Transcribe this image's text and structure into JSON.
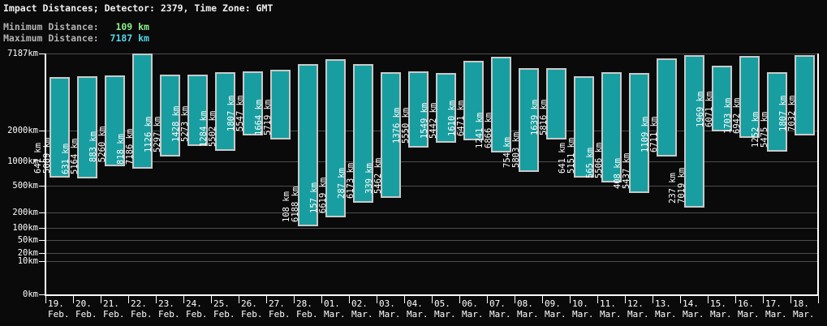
{
  "header": {
    "title": "Impact Distances; Detector: 2379, Time Zone: GMT",
    "min_label": "Minimum Distance:",
    "min_value": "109 km",
    "max_label": "Maximum Distance:",
    "max_value": "7187 km"
  },
  "colors": {
    "background": "#0a0a0a",
    "bar_fill": "#189ea0",
    "bar_border": "#c9c9c9",
    "axis": "#ffffff",
    "gridline": "#4d4d4d",
    "min_value_text": "#8df08d",
    "max_value_text": "#54d7e8",
    "header_label_text": "#b2b2b2",
    "title_text": "#efefef"
  },
  "chart_data": {
    "type": "bar",
    "variant": "floating-range-columns",
    "title": "Impact Distances; Detector: 2379, Time Zone: GMT",
    "unit": "km",
    "grid": true,
    "ylim": [
      0,
      7187
    ],
    "yscale": {
      "type": "power",
      "exponent": 0.3,
      "max": 7187
    },
    "y_ticks": [
      {
        "value": 7187,
        "label": "7187km"
      },
      {
        "value": 2000,
        "label": "2000km"
      },
      {
        "value": 1000,
        "label": "1000km"
      },
      {
        "value": 500,
        "label": "500km"
      },
      {
        "value": 200,
        "label": "200km"
      },
      {
        "value": 100,
        "label": "100km"
      },
      {
        "value": 50,
        "label": "50km"
      },
      {
        "value": 20,
        "label": "20km"
      },
      {
        "value": 10,
        "label": "10km"
      },
      {
        "value": 0,
        "label": "0km"
      }
    ],
    "bars": [
      {
        "day": "19.",
        "month": "Feb.",
        "min": 641,
        "max": 5089
      },
      {
        "day": "20.",
        "month": "Feb.",
        "min": 631,
        "max": 5164
      },
      {
        "day": "21.",
        "month": "Feb.",
        "min": 883,
        "max": 5260
      },
      {
        "day": "22.",
        "month": "Feb.",
        "min": 818,
        "max": 7186
      },
      {
        "day": "23.",
        "month": "Feb.",
        "min": 1126,
        "max": 5297
      },
      {
        "day": "24.",
        "month": "Feb.",
        "min": 1428,
        "max": 5273
      },
      {
        "day": "25.",
        "month": "Feb.",
        "min": 1284,
        "max": 5502
      },
      {
        "day": "26.",
        "month": "Feb.",
        "min": 1807,
        "max": 5547
      },
      {
        "day": "27.",
        "month": "Feb.",
        "min": 1664,
        "max": 5719
      },
      {
        "day": "28.",
        "month": "Feb.",
        "min": 108,
        "max": 6188
      },
      {
        "day": "01.",
        "month": "Mar.",
        "min": 157,
        "max": 6619
      },
      {
        "day": "02.",
        "month": "Mar.",
        "min": 287,
        "max": 6173
      },
      {
        "day": "03.",
        "month": "Mar.",
        "min": 339,
        "max": 5462
      },
      {
        "day": "04.",
        "month": "Mar.",
        "min": 1376,
        "max": 5550
      },
      {
        "day": "05.",
        "month": "Mar.",
        "min": 1549,
        "max": 5442
      },
      {
        "day": "06.",
        "month": "Mar.",
        "min": 1610,
        "max": 6471
      },
      {
        "day": "07.",
        "month": "Mar.",
        "min": 1241,
        "max": 6866
      },
      {
        "day": "08.",
        "month": "Mar.",
        "min": 754,
        "max": 5803
      },
      {
        "day": "09.",
        "month": "Mar.",
        "min": 1639,
        "max": 5816
      },
      {
        "day": "10.",
        "month": "Mar.",
        "min": 641,
        "max": 5151
      },
      {
        "day": "11.",
        "month": "Mar.",
        "min": 565,
        "max": 5506
      },
      {
        "day": "12.",
        "month": "Mar.",
        "min": 408,
        "max": 5437
      },
      {
        "day": "13.",
        "month": "Mar.",
        "min": 1109,
        "max": 6711
      },
      {
        "day": "14.",
        "month": "Mar.",
        "min": 237,
        "max": 7019
      },
      {
        "day": "15.",
        "month": "Mar.",
        "min": 1969,
        "max": 6071
      },
      {
        "day": "16.",
        "month": "Mar.",
        "min": 1703,
        "max": 6942
      },
      {
        "day": "17.",
        "month": "Mar.",
        "min": 1252,
        "max": 5475
      },
      {
        "day": "18.",
        "month": "Mar.",
        "min": 1807,
        "max": 7032
      }
    ]
  }
}
